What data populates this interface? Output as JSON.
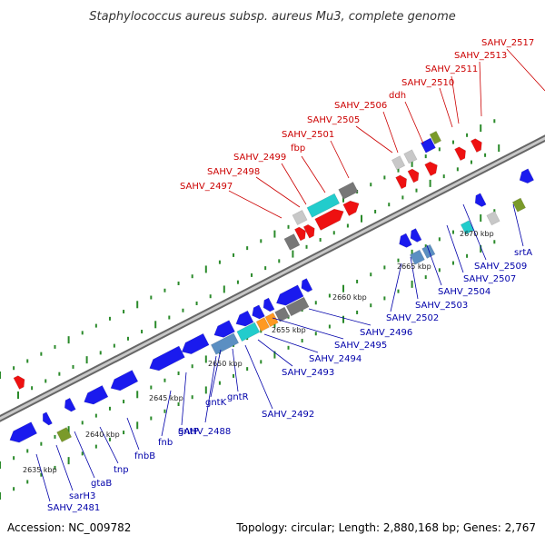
{
  "title": "Staphylococcus aureus subsp. aureus Mu3, complete genome",
  "footer": {
    "accession": "Accession: NC_009782",
    "stats": "Topology: circular; Length: 2,880,168 bp; Genes: 2,767"
  },
  "colors": {
    "forward_label": "#cc0000",
    "reverse_label": "#0000aa",
    "backbone": "#888888",
    "tick": "#2a8a2a"
  },
  "ruler": [
    {
      "label": "2635 kbp"
    },
    {
      "label": "2640 kbp"
    },
    {
      "label": "2645 kbp"
    },
    {
      "label": "2650 kbp"
    },
    {
      "label": "2655 kbp"
    },
    {
      "label": "2660 kbp"
    },
    {
      "label": "2665 kbp"
    },
    {
      "label": "2670 kbp"
    }
  ],
  "top_labels": [
    {
      "text": "SAHV_2497"
    },
    {
      "text": "SAHV_2498"
    },
    {
      "text": "SAHV_2499"
    },
    {
      "text": "fbp"
    },
    {
      "text": "SAHV_2501"
    },
    {
      "text": "SAHV_2505"
    },
    {
      "text": "SAHV_2506"
    },
    {
      "text": "ddh"
    },
    {
      "text": "SAHV_2510"
    },
    {
      "text": "SAHV_2511"
    },
    {
      "text": "SAHV_2513"
    },
    {
      "text": "SAHV_2517"
    }
  ],
  "bottom_labels": [
    {
      "text": "SAHV_2481"
    },
    {
      "text": "sarH3"
    },
    {
      "text": "gtaB"
    },
    {
      "text": "tnp"
    },
    {
      "text": "fnbB"
    },
    {
      "text": "fnb"
    },
    {
      "text": "gntP"
    },
    {
      "text": "SAHV_2488"
    },
    {
      "text": "gntK"
    },
    {
      "text": "gntR"
    },
    {
      "text": "SAHV_2492"
    },
    {
      "text": "SAHV_2493"
    },
    {
      "text": "SAHV_2494"
    },
    {
      "text": "SAHV_2495"
    },
    {
      "text": "SAHV_2496"
    },
    {
      "text": "SAHV_2502"
    },
    {
      "text": "SAHV_2503"
    },
    {
      "text": "SAHV_2504"
    },
    {
      "text": "SAHV_2507"
    },
    {
      "text": "SAHV_2509"
    },
    {
      "text": "srtA"
    }
  ]
}
